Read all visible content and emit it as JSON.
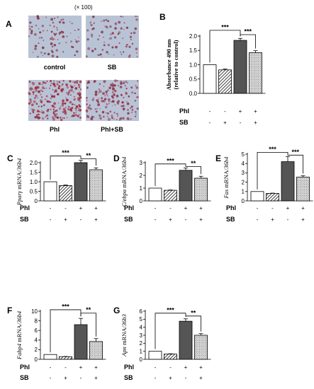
{
  "panel_a": {
    "label": "A",
    "magnification": "(× 100)",
    "images": [
      {
        "caption": "control",
        "density": 0.35,
        "color": "#8a3b4a"
      },
      {
        "caption": "SB",
        "density": 0.32,
        "color": "#8a3b4a"
      },
      {
        "caption": "Phl",
        "density": 0.9,
        "color": "#9c2f3c"
      },
      {
        "caption": "Phl+SB",
        "density": 0.6,
        "color": "#93364a"
      }
    ]
  },
  "treatments": {
    "row1": "Phl",
    "row2": "SB",
    "signs_row1": [
      "-",
      "-",
      "+",
      "+"
    ],
    "signs_row2": [
      "-",
      "+",
      "-",
      "+"
    ]
  },
  "chart_data": [
    {
      "panel": "B",
      "type": "bar",
      "ylabel": "Absorbance 490 nm",
      "ylabel2": "(relative to control)",
      "ylim": [
        0,
        2.0
      ],
      "yticks": [
        "0.0",
        "0.5",
        "1.0",
        "1.5",
        "2.0"
      ],
      "values": [
        1.0,
        0.82,
        1.85,
        1.42
      ],
      "errors": [
        0.0,
        0.03,
        0.07,
        0.07
      ],
      "significance": [
        {
          "from": 0,
          "to": 2,
          "label": "***",
          "level": 2.2
        },
        {
          "from": 2,
          "to": 3,
          "label": "***",
          "level": 2.05
        }
      ]
    },
    {
      "panel": "C",
      "type": "bar",
      "gene": "Pparγ",
      "ylabel_suffix": " mRNA/",
      "ref": "36b4",
      "ylim": [
        0,
        2.0
      ],
      "yticks": [
        "0",
        "0.5",
        "1.0",
        "1.5",
        "2.0"
      ],
      "values": [
        1.0,
        0.8,
        2.0,
        1.63
      ],
      "errors": [
        0.0,
        0.03,
        0.12,
        0.1
      ],
      "significance": [
        {
          "from": 0,
          "to": 2,
          "label": "***",
          "level": 2.35
        },
        {
          "from": 2,
          "to": 3,
          "label": "**",
          "level": 2.2
        }
      ]
    },
    {
      "panel": "D",
      "type": "bar",
      "gene": "C/ebpα",
      "ylabel_suffix": " mRNA/",
      "ref": "36b4",
      "ylim": [
        0,
        3
      ],
      "yticks": [
        "0",
        "1",
        "2",
        "3"
      ],
      "values": [
        1.0,
        0.83,
        2.4,
        1.78
      ],
      "errors": [
        0.0,
        0.03,
        0.18,
        0.15
      ],
      "significance": [
        {
          "from": 0,
          "to": 2,
          "label": "***",
          "level": 2.9
        },
        {
          "from": 2,
          "to": 3,
          "label": "**",
          "level": 2.7
        }
      ]
    },
    {
      "panel": "E",
      "type": "bar",
      "gene": "Fas",
      "ylabel_suffix": " mRNA/",
      "ref": "36b4",
      "ylim": [
        0,
        5
      ],
      "yticks": [
        "0",
        "1",
        "2",
        "3",
        "4",
        "5"
      ],
      "values": [
        1.0,
        0.8,
        4.2,
        2.55
      ],
      "errors": [
        0.0,
        0.03,
        0.55,
        0.15
      ],
      "significance": [
        {
          "from": 0,
          "to": 2,
          "label": "***",
          "level": 5.2
        },
        {
          "from": 2,
          "to": 3,
          "label": "***",
          "level": 4.9
        }
      ]
    },
    {
      "panel": "F",
      "type": "bar",
      "gene": "Fabp4",
      "ylabel_suffix": " mRNA/",
      "ref": "36b4",
      "ylim": [
        0,
        10
      ],
      "yticks": [
        "0",
        "2",
        "4",
        "6",
        "8",
        "10"
      ],
      "values": [
        1.0,
        0.55,
        7.2,
        3.7
      ],
      "errors": [
        0.0,
        0.05,
        1.3,
        0.6
      ],
      "significance": [
        {
          "from": 0,
          "to": 2,
          "label": "***",
          "level": 10.3
        },
        {
          "from": 2,
          "to": 3,
          "label": "**",
          "level": 9.6
        }
      ]
    },
    {
      "panel": "G",
      "type": "bar",
      "gene": "Apn",
      "ylabel_suffix": " mRNA/",
      "ref": "36b3",
      "ylim": [
        0,
        6
      ],
      "yticks": [
        "0",
        "1",
        "2",
        "3",
        "4",
        "5",
        "6"
      ],
      "values": [
        1.0,
        0.65,
        4.75,
        3.0
      ],
      "errors": [
        0.0,
        0.04,
        0.3,
        0.2
      ],
      "significance": [
        {
          "from": 0,
          "to": 2,
          "label": "***",
          "level": 5.75
        },
        {
          "from": 2,
          "to": 3,
          "label": "**",
          "level": 5.4
        }
      ]
    }
  ],
  "colors": {
    "bar1": "#ffffff",
    "bar2_hatch": "#000000",
    "bar3": "#555555",
    "bar4_dots": "#444444"
  }
}
